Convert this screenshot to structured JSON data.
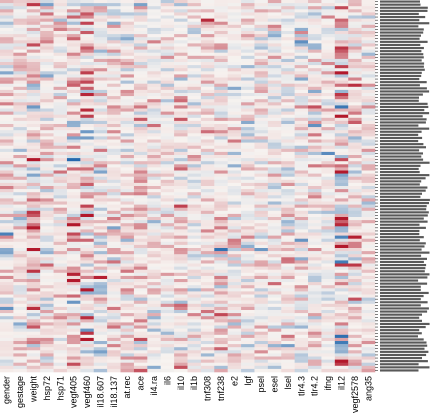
{
  "chart_data": {
    "type": "heatmap",
    "x_labels": [
      "gender",
      "gestage",
      "weight",
      "hsp72",
      "hsp71",
      "vegf405",
      "vegf460",
      "il18.607",
      "il18.137",
      "at.rec",
      "ace",
      "il4.ra",
      "il6",
      "il10",
      "il1b",
      "tnf308",
      "tnf238",
      "e2",
      "lgf",
      "psel",
      "esel",
      "lsel",
      "tlr4.3",
      "tlr4.2",
      "ifng",
      "il12",
      "vegf2578",
      "ang35"
    ],
    "n_rows": 120,
    "row_labels_legible": false,
    "color_scale": {
      "low": "#2166ac",
      "mid": "#f7f3f0",
      "high": "#b2182b",
      "range": [
        -1,
        1
      ]
    },
    "column_profile": [
      0.05,
      0.1,
      0.35,
      0.05,
      0.08,
      0.15,
      0.2,
      0.0,
      0.1,
      0.05,
      0.1,
      0.05,
      0.0,
      0.1,
      0.0,
      0.1,
      0.1,
      0.05,
      0.0,
      0.05,
      0.0,
      0.0,
      0.05,
      0.05,
      0.0,
      0.15,
      0.1,
      0.05
    ],
    "column_spread": [
      0.45,
      0.4,
      0.85,
      0.45,
      0.4,
      0.55,
      0.8,
      0.45,
      0.4,
      0.45,
      0.45,
      0.4,
      0.4,
      0.5,
      0.4,
      0.45,
      0.45,
      0.5,
      0.4,
      0.4,
      0.4,
      0.4,
      0.45,
      0.45,
      0.4,
      0.85,
      0.5,
      0.4
    ],
    "grid": false,
    "legend": "none"
  }
}
